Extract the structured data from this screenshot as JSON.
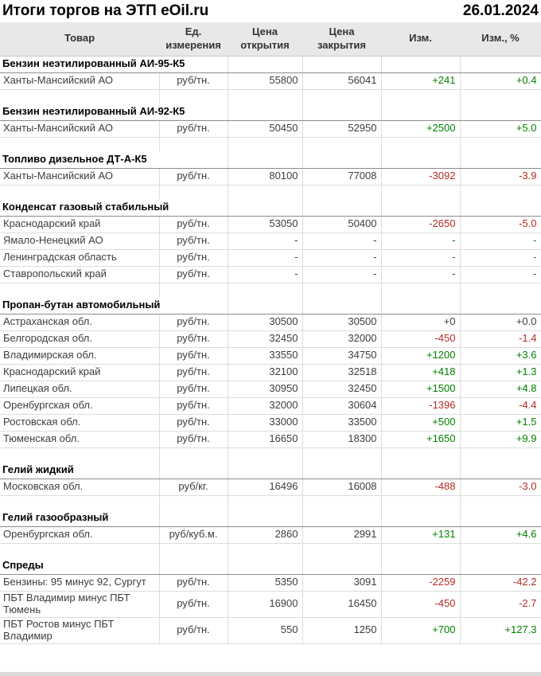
{
  "title": "Итоги торгов на ЭТП eOil.ru",
  "date": "26.01.2024",
  "columns": [
    "Товар",
    "Ед. измерения",
    "Цена открытия",
    "Цена закрытия",
    "Изм.",
    "Изм., %"
  ],
  "colors": {
    "positive_change": "#008000",
    "negative_change": "#b42a22",
    "neutral_change": "#3d3d3d",
    "header_background": "#e8e8e8",
    "section_divider": "#8c8c8c",
    "grid_line": "#dcdcdc"
  },
  "sections": [
    {
      "name": "Бензин неэтилированный АИ-95-К5",
      "rows": [
        {
          "product": "Ханты-Мансийский АО",
          "unit": "руб/тн.",
          "open": "55800",
          "close": "56041",
          "change": "+241",
          "change_pct": "+0.4",
          "trend": "up"
        }
      ]
    },
    {
      "name": "Бензин неэтилированный АИ-92-К5",
      "rows": [
        {
          "product": "Ханты-Мансийский АО",
          "unit": "руб/тн.",
          "open": "50450",
          "close": "52950",
          "change": "+2500",
          "change_pct": "+5.0",
          "trend": "up"
        }
      ]
    },
    {
      "name": "Топливо дизельное ДТ-А-К5",
      "rows": [
        {
          "product": "Ханты-Мансийский АО",
          "unit": "руб/тн.",
          "open": "80100",
          "close": "77008",
          "change": "-3092",
          "change_pct": "-3.9",
          "trend": "down"
        }
      ]
    },
    {
      "name": "Конденсат газовый стабильный",
      "rows": [
        {
          "product": "Краснодарский край",
          "unit": "руб/тн.",
          "open": "53050",
          "close": "50400",
          "change": "-2650",
          "change_pct": "-5.0",
          "trend": "down"
        },
        {
          "product": "Ямало-Ненецкий АО",
          "unit": "руб/тн.",
          "open": "-",
          "close": "-",
          "change": "-",
          "change_pct": "-",
          "trend": "empty"
        },
        {
          "product": "Ленинградская область",
          "unit": "руб/тн.",
          "open": "-",
          "close": "-",
          "change": "-",
          "change_pct": "-",
          "trend": "empty"
        },
        {
          "product": "Ставропольский край",
          "unit": "руб/тн.",
          "open": "-",
          "close": "-",
          "change": "-",
          "change_pct": "-",
          "trend": "empty"
        }
      ]
    },
    {
      "name": "Пропан-бутан автомобильный",
      "rows": [
        {
          "product": "Астраханская обл.",
          "unit": "руб/тн.",
          "open": "30500",
          "close": "30500",
          "change": "+0",
          "change_pct": "+0.0",
          "trend": "zero"
        },
        {
          "product": "Белгородская обл.",
          "unit": "руб/тн.",
          "open": "32450",
          "close": "32000",
          "change": "-450",
          "change_pct": "-1.4",
          "trend": "down"
        },
        {
          "product": "Владимирская обл.",
          "unit": "руб/тн.",
          "open": "33550",
          "close": "34750",
          "change": "+1200",
          "change_pct": "+3.6",
          "trend": "up"
        },
        {
          "product": "Краснодарский край",
          "unit": "руб/тн.",
          "open": "32100",
          "close": "32518",
          "change": "+418",
          "change_pct": "+1.3",
          "trend": "up"
        },
        {
          "product": "Липецкая обл.",
          "unit": "руб/тн.",
          "open": "30950",
          "close": "32450",
          "change": "+1500",
          "change_pct": "+4.8",
          "trend": "up"
        },
        {
          "product": "Оренбургская обл.",
          "unit": "руб/тн.",
          "open": "32000",
          "close": "30604",
          "change": "-1396",
          "change_pct": "-4.4",
          "trend": "down"
        },
        {
          "product": "Ростовская обл.",
          "unit": "руб/тн.",
          "open": "33000",
          "close": "33500",
          "change": "+500",
          "change_pct": "+1.5",
          "trend": "up"
        },
        {
          "product": "Тюменская обл.",
          "unit": "руб/тн.",
          "open": "16650",
          "close": "18300",
          "change": "+1650",
          "change_pct": "+9.9",
          "trend": "up"
        }
      ]
    },
    {
      "name": "Гелий жидкий",
      "rows": [
        {
          "product": "Московская обл.",
          "unit": "руб/кг.",
          "open": "16496",
          "close": "16008",
          "change": "-488",
          "change_pct": "-3.0",
          "trend": "down"
        }
      ]
    },
    {
      "name": "Гелий газообразный",
      "rows": [
        {
          "product": "Оренбургская обл.",
          "unit": "руб/куб.м.",
          "open": "2860",
          "close": "2991",
          "change": "+131",
          "change_pct": "+4.6",
          "trend": "up"
        }
      ]
    },
    {
      "name": "Спреды",
      "rows": [
        {
          "product": "Бензины: 95 минус 92, Сургут",
          "unit": "руб/тн.",
          "open": "5350",
          "close": "3091",
          "change": "-2259",
          "change_pct": "-42.2",
          "trend": "down"
        },
        {
          "product": "ПБТ Владимир минус ПБТ Тюмень",
          "unit": "руб/тн.",
          "open": "16900",
          "close": "16450",
          "change": "-450",
          "change_pct": "-2.7",
          "trend": "down"
        },
        {
          "product": "ПБТ Ростов минус ПБТ Владимир",
          "unit": "руб/тн.",
          "open": "550",
          "close": "1250",
          "change": "+700",
          "change_pct": "+127.3",
          "trend": "up"
        }
      ]
    }
  ]
}
